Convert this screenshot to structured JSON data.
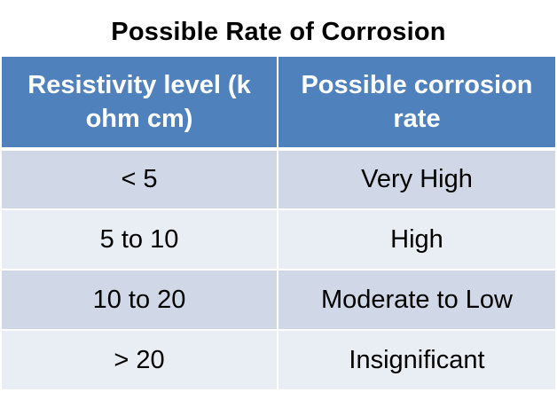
{
  "title": "Possible Rate of Corrosion",
  "table": {
    "headers": [
      "Resistivity level (k ohm cm)",
      "Possible corrosion rate"
    ],
    "rows": [
      [
        "< 5",
        "Very High"
      ],
      [
        "5 to 10",
        "High"
      ],
      [
        "10 to 20",
        "Moderate to Low"
      ],
      [
        "> 20",
        "Insignificant"
      ]
    ]
  },
  "colors": {
    "header_fill": "#4f81bd",
    "row_band_dark": "#d0d8e8",
    "row_band_light": "#e9edf4"
  }
}
